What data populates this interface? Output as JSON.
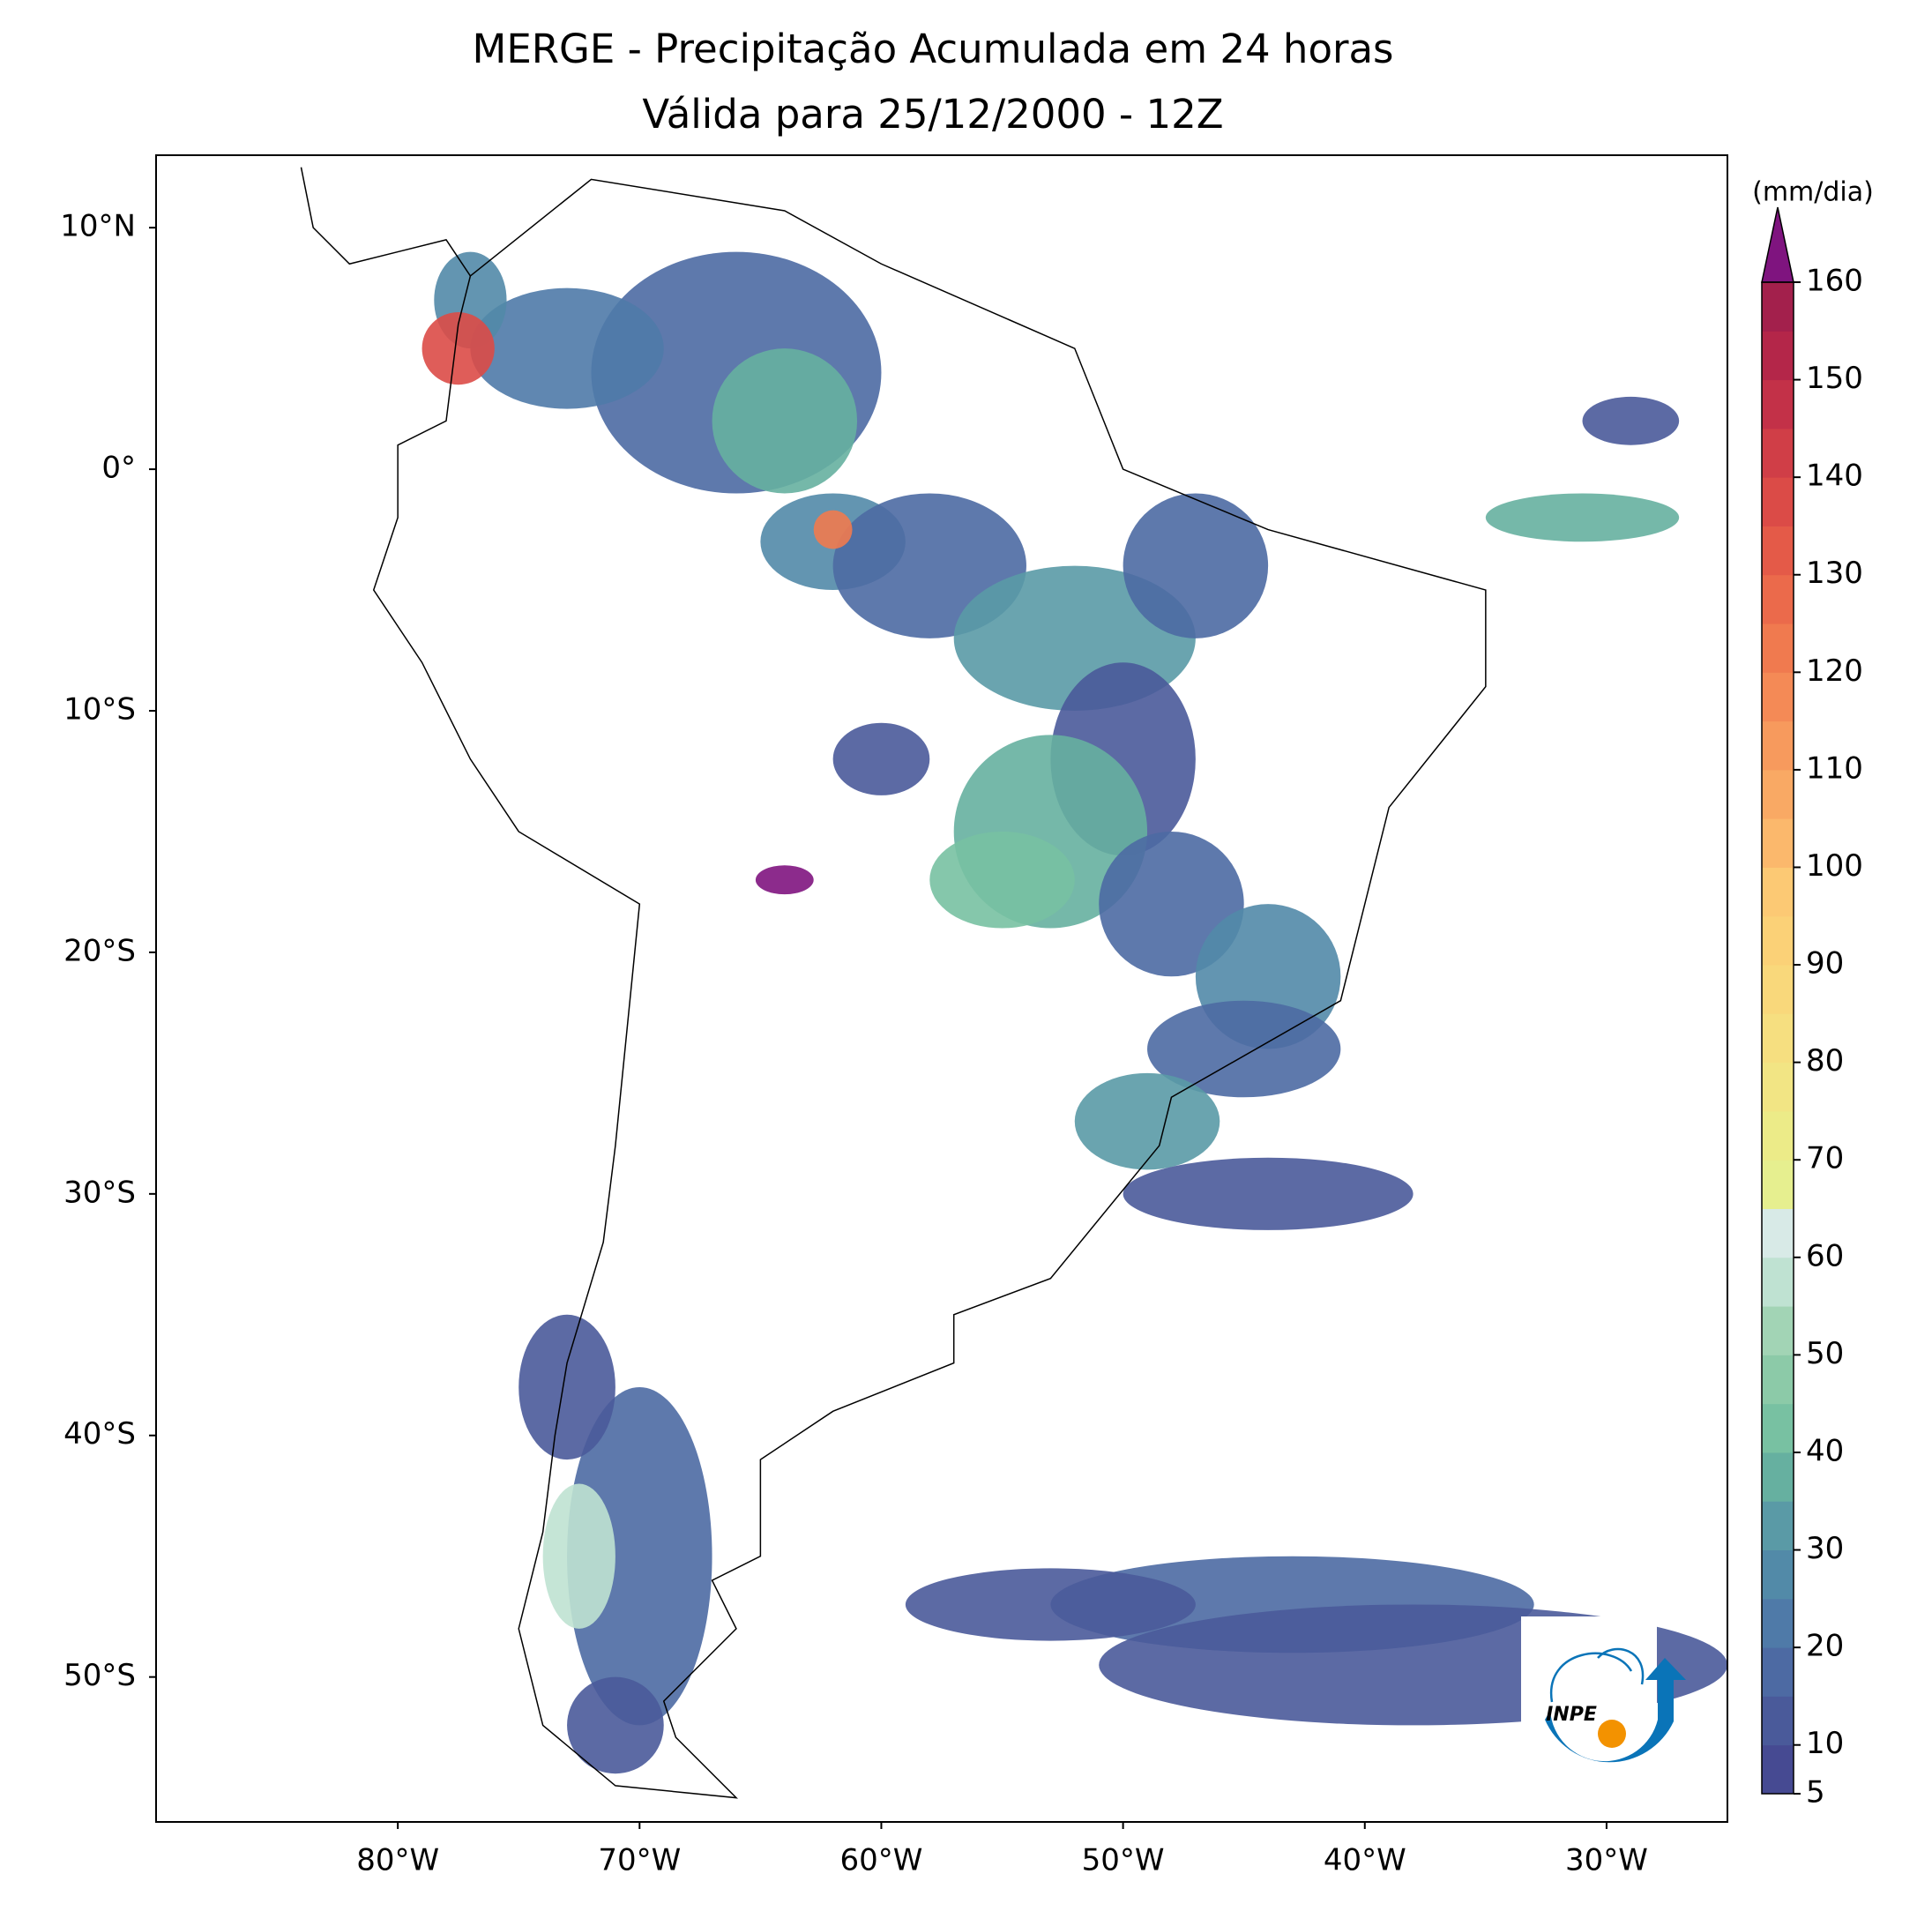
{
  "chart_data": {
    "type": "map",
    "title": "MERGE - Precipitação Acumulada em 24 horas",
    "subtitle": "Válida para 25/12/2000 - 12Z",
    "xlim": [
      -90,
      -25
    ],
    "ylim": [
      -56,
      13
    ],
    "xticks": [
      {
        "value": -80,
        "label": "80°W"
      },
      {
        "value": -70,
        "label": "70°W"
      },
      {
        "value": -60,
        "label": "60°W"
      },
      {
        "value": -50,
        "label": "50°W"
      },
      {
        "value": -40,
        "label": "40°W"
      },
      {
        "value": -30,
        "label": "30°W"
      }
    ],
    "yticks": [
      {
        "value": 10,
        "label": "10°N"
      },
      {
        "value": 0,
        "label": "0°"
      },
      {
        "value": -10,
        "label": "10°S"
      },
      {
        "value": -20,
        "label": "20°S"
      },
      {
        "value": -30,
        "label": "30°S"
      },
      {
        "value": -40,
        "label": "40°S"
      },
      {
        "value": -50,
        "label": "50°S"
      }
    ],
    "colorbar": {
      "label": "(mm/dia)",
      "clim": [
        5,
        160
      ],
      "ticks": [
        5,
        10,
        20,
        30,
        40,
        50,
        60,
        70,
        80,
        90,
        100,
        110,
        120,
        130,
        140,
        150,
        160
      ],
      "levels": [
        5,
        10,
        15,
        20,
        25,
        30,
        35,
        40,
        45,
        50,
        55,
        60,
        65,
        70,
        75,
        80,
        85,
        90,
        95,
        100,
        105,
        110,
        115,
        120,
        125,
        130,
        135,
        140,
        145,
        150,
        155,
        160
      ],
      "colors": [
        "#464a92",
        "#4a5a9a",
        "#4d6aa3",
        "#4f7aa8",
        "#528aa8",
        "#5a9aa6",
        "#66b0a0",
        "#78c1a2",
        "#8ccaa8",
        "#a2d4b5",
        "#bfe2d2",
        "#d8eae7",
        "#e6ef8f",
        "#eceb88",
        "#f2e584",
        "#f6df80",
        "#f9d87b",
        "#fbd177",
        "#fcc974",
        "#fbb86c",
        "#f9a964",
        "#f79a5d",
        "#f48a56",
        "#f07a4f",
        "#eb6a4b",
        "#e45a48",
        "#db4b47",
        "#d03e47",
        "#c33148",
        "#b42649",
        "#a3204c"
      ],
      "extend_color": "#7f147f"
    },
    "logo": "INPE"
  }
}
